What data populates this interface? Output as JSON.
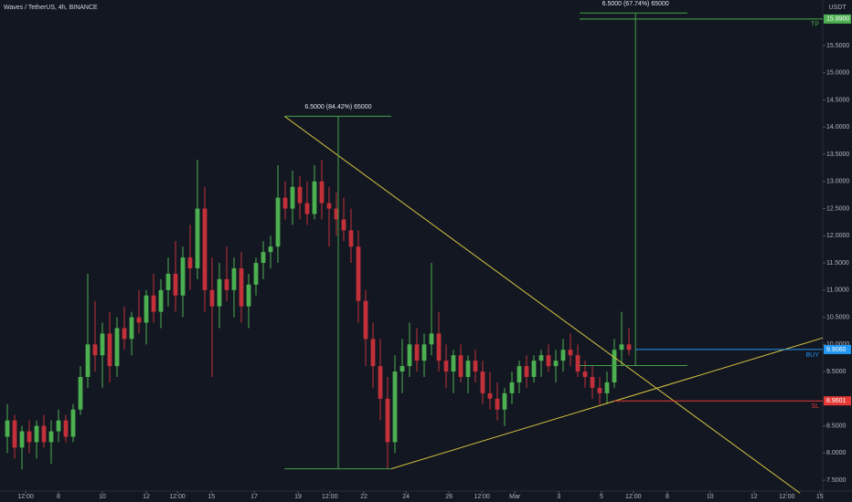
{
  "chart_data": {
    "type": "candlestick",
    "title": "Waves / TetherUS, 4h, BINANCE",
    "currency": "USDT",
    "up_color": "#4caf50",
    "down_color": "#c2303a",
    "x": [
      1,
      2,
      3,
      4,
      5,
      6,
      7,
      8,
      9,
      10,
      11,
      12,
      13,
      14,
      15,
      16,
      17,
      18,
      19,
      20,
      21,
      22,
      23,
      24,
      25,
      26,
      27,
      28,
      29,
      30,
      31,
      32,
      33,
      34,
      35,
      36,
      37,
      38,
      39,
      40,
      41,
      42,
      43,
      44,
      45,
      46,
      47,
      48,
      49,
      50,
      51,
      52,
      53,
      54,
      55,
      56,
      57,
      58,
      59,
      60,
      61,
      62,
      63,
      64,
      65,
      66,
      67,
      68,
      69,
      70,
      71,
      72,
      73,
      74,
      75,
      76,
      77,
      78,
      79,
      80,
      81,
      82,
      83,
      84,
      85,
      86
    ],
    "ohlc": [
      [
        8.3,
        8.9,
        8.0,
        8.6
      ],
      [
        8.6,
        8.7,
        7.9,
        8.1
      ],
      [
        8.1,
        8.5,
        7.7,
        8.4
      ],
      [
        8.4,
        8.6,
        8.0,
        8.2
      ],
      [
        8.2,
        8.6,
        7.9,
        8.5
      ],
      [
        8.5,
        8.7,
        8.1,
        8.2
      ],
      [
        8.2,
        8.6,
        7.8,
        8.4
      ],
      [
        8.4,
        8.8,
        8.2,
        8.6
      ],
      [
        8.6,
        8.7,
        8.2,
        8.3
      ],
      [
        8.3,
        8.9,
        8.2,
        8.8
      ],
      [
        8.8,
        9.6,
        8.7,
        9.4
      ],
      [
        9.4,
        11.3,
        9.2,
        10.0
      ],
      [
        10.0,
        10.8,
        9.5,
        9.8
      ],
      [
        9.8,
        10.4,
        9.2,
        10.2
      ],
      [
        10.2,
        10.6,
        9.3,
        9.6
      ],
      [
        9.6,
        10.5,
        9.4,
        10.3
      ],
      [
        10.3,
        10.7,
        9.9,
        10.1
      ],
      [
        10.1,
        10.6,
        9.8,
        10.5
      ],
      [
        10.5,
        11.0,
        10.2,
        10.4
      ],
      [
        10.4,
        11.0,
        10.0,
        10.9
      ],
      [
        10.9,
        11.3,
        10.4,
        10.6
      ],
      [
        10.6,
        11.2,
        10.3,
        11.0
      ],
      [
        11.0,
        11.6,
        10.7,
        11.3
      ],
      [
        11.3,
        11.9,
        10.6,
        10.9
      ],
      [
        10.9,
        11.8,
        10.5,
        11.6
      ],
      [
        11.6,
        12.2,
        11.0,
        11.4
      ],
      [
        11.4,
        13.4,
        11.2,
        12.5
      ],
      [
        12.5,
        12.9,
        10.6,
        11.0
      ],
      [
        11.0,
        11.6,
        9.4,
        10.7
      ],
      [
        10.7,
        11.5,
        10.3,
        11.2
      ],
      [
        11.2,
        11.8,
        10.8,
        11.0
      ],
      [
        11.0,
        11.6,
        10.5,
        11.4
      ],
      [
        11.4,
        11.7,
        10.4,
        10.7
      ],
      [
        10.7,
        11.3,
        10.3,
        11.1
      ],
      [
        11.1,
        11.6,
        10.9,
        11.5
      ],
      [
        11.5,
        11.9,
        11.2,
        11.7
      ],
      [
        11.7,
        12.0,
        11.4,
        11.8
      ],
      [
        11.8,
        13.3,
        11.5,
        12.7
      ],
      [
        12.7,
        13.0,
        12.3,
        12.5
      ],
      [
        12.5,
        13.2,
        12.2,
        12.9
      ],
      [
        12.9,
        13.1,
        12.3,
        12.6
      ],
      [
        12.6,
        13.0,
        12.2,
        12.4
      ],
      [
        12.4,
        13.3,
        12.3,
        13.0
      ],
      [
        13.0,
        13.4,
        12.3,
        12.6
      ],
      [
        12.6,
        12.9,
        11.8,
        12.5
      ],
      [
        12.5,
        12.8,
        12.0,
        12.3
      ],
      [
        12.3,
        12.7,
        11.9,
        12.1
      ],
      [
        12.1,
        12.5,
        11.5,
        11.8
      ],
      [
        11.8,
        12.1,
        10.4,
        10.8
      ],
      [
        10.8,
        11.0,
        9.6,
        10.1
      ],
      [
        10.1,
        10.4,
        9.2,
        9.6
      ],
      [
        9.6,
        10.1,
        8.6,
        9.0
      ],
      [
        9.0,
        9.4,
        7.7,
        8.2
      ],
      [
        8.2,
        9.8,
        8.0,
        9.5
      ],
      [
        9.5,
        10.1,
        9.1,
        9.6
      ],
      [
        9.6,
        10.4,
        9.4,
        10.0
      ],
      [
        10.0,
        10.3,
        9.5,
        9.7
      ],
      [
        9.7,
        10.2,
        9.4,
        10.0
      ],
      [
        10.0,
        11.5,
        9.8,
        10.2
      ],
      [
        10.2,
        10.6,
        9.5,
        9.7
      ],
      [
        9.7,
        10.0,
        9.2,
        9.5
      ],
      [
        9.5,
        9.9,
        9.1,
        9.8
      ],
      [
        9.8,
        10.0,
        9.3,
        9.4
      ],
      [
        9.4,
        9.8,
        9.1,
        9.7
      ],
      [
        9.7,
        9.9,
        9.3,
        9.5
      ],
      [
        9.5,
        9.7,
        8.9,
        9.1
      ],
      [
        9.1,
        9.5,
        8.8,
        9.0
      ],
      [
        9.0,
        9.3,
        8.6,
        8.8
      ],
      [
        8.8,
        9.2,
        8.5,
        9.1
      ],
      [
        9.1,
        9.5,
        8.9,
        9.3
      ],
      [
        9.3,
        9.7,
        9.1,
        9.6
      ],
      [
        9.6,
        9.8,
        9.2,
        9.4
      ],
      [
        9.4,
        9.8,
        9.3,
        9.7
      ],
      [
        9.7,
        9.9,
        9.4,
        9.8
      ],
      [
        9.8,
        10.0,
        9.5,
        9.6
      ],
      [
        9.6,
        9.9,
        9.3,
        9.7
      ],
      [
        9.7,
        10.1,
        9.5,
        9.9
      ],
      [
        9.9,
        10.2,
        9.6,
        9.8
      ],
      [
        9.8,
        10.0,
        9.4,
        9.5
      ],
      [
        9.5,
        9.7,
        9.2,
        9.4
      ],
      [
        9.4,
        9.6,
        9.0,
        9.2
      ],
      [
        9.2,
        9.4,
        8.9,
        9.1
      ],
      [
        9.1,
        9.5,
        8.9,
        9.3
      ],
      [
        9.3,
        10.1,
        9.2,
        9.9
      ],
      [
        9.9,
        10.6,
        9.6,
        10.0
      ],
      [
        10.0,
        10.3,
        9.8,
        9.9
      ]
    ],
    "xlim": [
      0,
      112.5
    ],
    "xticks": [
      {
        "value": 3.5,
        "label": "12:00"
      },
      {
        "value": 8,
        "label": "8"
      },
      {
        "value": 14,
        "label": "10"
      },
      {
        "value": 20,
        "label": "12"
      },
      {
        "value": 24.25,
        "label": "12:00"
      },
      {
        "value": 28.9,
        "label": "15"
      },
      {
        "value": 34.75,
        "label": "17"
      },
      {
        "value": 40.75,
        "label": "19"
      },
      {
        "value": 45.1,
        "label": "12:00"
      },
      {
        "value": 49.75,
        "label": "22"
      },
      {
        "value": 55.5,
        "label": "24"
      },
      {
        "value": 61.4,
        "label": "26"
      },
      {
        "value": 65.9,
        "label": "12:00"
      },
      {
        "value": 70.4,
        "label": "Mar"
      },
      {
        "value": 76.4,
        "label": "3"
      },
      {
        "value": 82.25,
        "label": "5"
      },
      {
        "value": 86.6,
        "label": "12:00"
      },
      {
        "value": 91.25,
        "label": "8"
      },
      {
        "value": 97.1,
        "label": "10"
      },
      {
        "value": 103.1,
        "label": "12"
      },
      {
        "value": 107.6,
        "label": "12:00"
      },
      {
        "value": 112.1,
        "label": "15"
      }
    ],
    "ylim": [
      7.3,
      16.34
    ],
    "yticks": [
      {
        "value": 7.5,
        "label": "7.5000"
      },
      {
        "value": 8,
        "label": "8.0000"
      },
      {
        "value": 8.5,
        "label": "8.5000"
      },
      {
        "value": 9.5,
        "label": "9.5000"
      },
      {
        "value": 10,
        "label": "10.0000"
      },
      {
        "value": 10.5,
        "label": "10.5000"
      },
      {
        "value": 11,
        "label": "11.0000"
      },
      {
        "value": 11.5,
        "label": "11.5000"
      },
      {
        "value": 12,
        "label": "12.0000"
      },
      {
        "value": 12.5,
        "label": "12.5000"
      },
      {
        "value": 13,
        "label": "13.0000"
      },
      {
        "value": 13.5,
        "label": "13.5000"
      },
      {
        "value": 14,
        "label": "14.0000"
      },
      {
        "value": 14.5,
        "label": "14.5000"
      },
      {
        "value": 15,
        "label": "15.0000"
      },
      {
        "value": 15.5,
        "label": "15.5000"
      }
    ],
    "grid": false,
    "trendlines": [
      {
        "x": [
          38.9,
          109.4
        ],
        "y": [
          14.2,
          7.26
        ],
        "color": "#d4c341"
      },
      {
        "x": [
          53.5,
          112.5
        ],
        "y": [
          7.71,
          10.12
        ],
        "color": "#d4c341"
      }
    ],
    "ranges": [
      {
        "label": "6.5000 (84.42%) 65000",
        "x": [
          38.9,
          53.5
        ],
        "x_mid": 46.25,
        "y": [
          7.71,
          14.2
        ],
        "color": "#43a047"
      },
      {
        "label": "6.5000 (67.74%) 65000",
        "x": [
          79.25,
          94
        ],
        "x_mid": 86.9,
        "y": [
          9.61,
          16.1
        ],
        "color": "#43a047"
      }
    ],
    "levels": [
      {
        "name": "TP",
        "value": 15.99,
        "label": "15.9900",
        "x_start": 79.25,
        "color": "#4caf50"
      },
      {
        "name": "BUY",
        "value": 9.906,
        "label": "9.9060",
        "x_start": 86.9,
        "color": "#2196f3"
      },
      {
        "name": "SL",
        "value": 8.9601,
        "label": "8.9601",
        "x_start": 84,
        "color": "#e53935"
      }
    ]
  }
}
